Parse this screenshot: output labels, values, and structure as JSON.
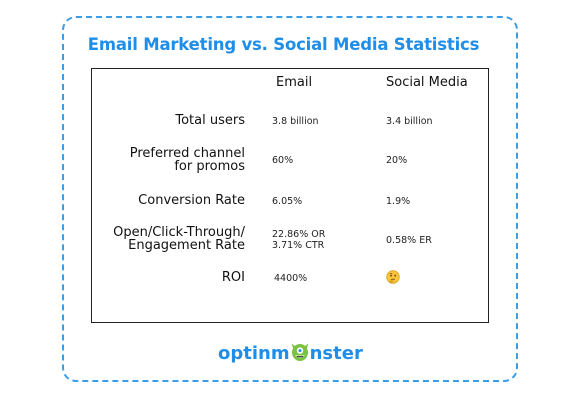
{
  "title": "Email Marketing vs. Social Media Statistics",
  "columns": {
    "email": "Email",
    "social": "Social Media"
  },
  "rows": [
    {
      "label": "Total users",
      "email": "3.8 billion",
      "social": "3.4 billion"
    },
    {
      "label": "Preferred channel\nfor promos",
      "email": "60%",
      "social": "20%"
    },
    {
      "label": "Conversion Rate",
      "email": "6.05%",
      "social": "1.9%"
    },
    {
      "label": "Open/Click-Through/\nEngagement Rate",
      "email": "22.86% OR\n3.71% CTR",
      "social": "0.58% ER"
    },
    {
      "label": "ROI",
      "email": "4400%",
      "social_icon": "thinking-face-emoji"
    }
  ],
  "logo": {
    "left": "optinm",
    "right": "nster",
    "icon": "green-monster-icon"
  },
  "colors": {
    "brand_blue": "#1f8ee8",
    "border": "#3b9de6",
    "monster_green": "#7cc243"
  }
}
